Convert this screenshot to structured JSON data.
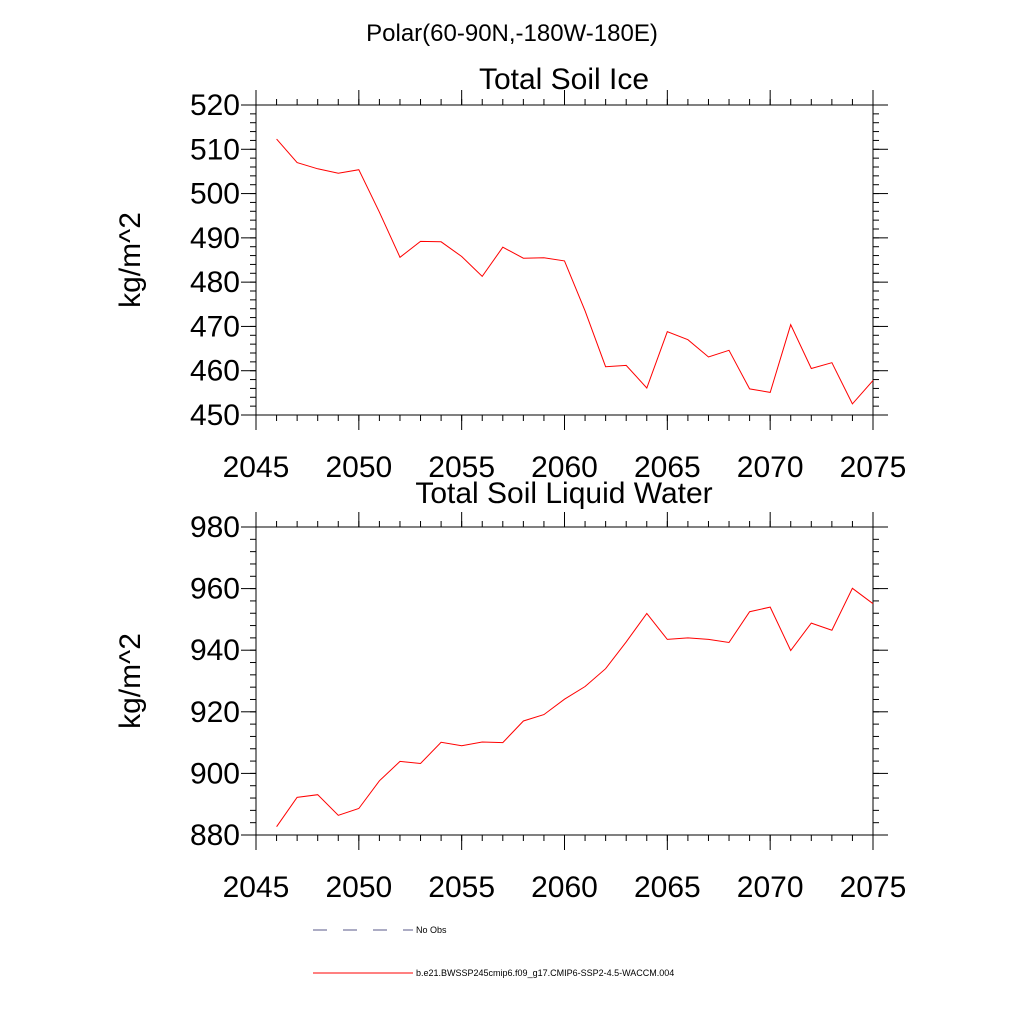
{
  "figure": {
    "suptitle": "Polar(60-90N,-180W-180E)"
  },
  "chart_data": [
    {
      "type": "line",
      "title": "Total Soil Ice",
      "xlabel": "",
      "ylabel": "kg/m^2",
      "xlim": [
        2045,
        2075
      ],
      "ylim": [
        450,
        520
      ],
      "x_ticks": [
        2045,
        2050,
        2055,
        2060,
        2065,
        2070,
        2075
      ],
      "y_ticks": [
        450,
        460,
        470,
        480,
        490,
        500,
        510,
        520
      ],
      "y_minor_step": 2,
      "x_minor_step": 1,
      "x": [
        2046,
        2047,
        2048,
        2049,
        2050,
        2051,
        2052,
        2053,
        2054,
        2055,
        2056,
        2057,
        2058,
        2059,
        2060,
        2061,
        2062,
        2063,
        2064,
        2065,
        2066,
        2067,
        2068,
        2069,
        2070,
        2071,
        2072,
        2073,
        2074,
        2075
      ],
      "series": [
        {
          "name": "b.e21.BWSSP245cmip6.f09_g17.CMIP6-SSP2-4.5-WACCM.004",
          "color": "#ff0000",
          "values": [
            512.3,
            507.0,
            505.6,
            504.6,
            505.4,
            495.8,
            485.6,
            489.2,
            489.1,
            485.8,
            481.3,
            487.9,
            485.4,
            485.5,
            484.8,
            473.5,
            460.9,
            461.2,
            456.1,
            468.8,
            467.0,
            463.1,
            464.6,
            455.9,
            455.1,
            470.4,
            460.5,
            461.8,
            452.5,
            457.8
          ]
        }
      ]
    },
    {
      "type": "line",
      "title": "Total Soil Liquid Water",
      "xlabel": "",
      "ylabel": "kg/m^2",
      "xlim": [
        2045,
        2075
      ],
      "ylim": [
        880,
        980
      ],
      "x_ticks": [
        2045,
        2050,
        2055,
        2060,
        2065,
        2070,
        2075
      ],
      "y_ticks": [
        880,
        900,
        920,
        940,
        960,
        980
      ],
      "y_minor_step": 4,
      "x_minor_step": 1,
      "x": [
        2046,
        2047,
        2048,
        2049,
        2050,
        2051,
        2052,
        2053,
        2054,
        2055,
        2056,
        2057,
        2058,
        2059,
        2060,
        2061,
        2062,
        2063,
        2064,
        2065,
        2066,
        2067,
        2068,
        2069,
        2070,
        2071,
        2072,
        2073,
        2074,
        2075
      ],
      "series": [
        {
          "name": "b.e21.BWSSP245cmip6.f09_g17.CMIP6-SSP2-4.5-WACCM.004",
          "color": "#ff0000",
          "values": [
            882.7,
            892.2,
            893.1,
            886.4,
            888.6,
            897.6,
            903.9,
            903.2,
            910.1,
            909.0,
            910.2,
            910.0,
            917.0,
            919.1,
            924.1,
            928.2,
            934.0,
            942.7,
            951.9,
            943.5,
            944.0,
            943.5,
            942.5,
            952.5,
            954.0,
            939.9,
            948.8,
            946.5,
            960.1,
            955.1
          ]
        }
      ]
    }
  ],
  "legend": {
    "position": "bottom",
    "items": [
      {
        "label": "No Obs",
        "color": "#5a5a8a",
        "style": "dashed"
      },
      {
        "label": "b.e21.BWSSP245cmip6.f09_g17.CMIP6-SSP2-4.5-WACCM.004",
        "color": "#ff0000",
        "style": "solid"
      }
    ]
  }
}
